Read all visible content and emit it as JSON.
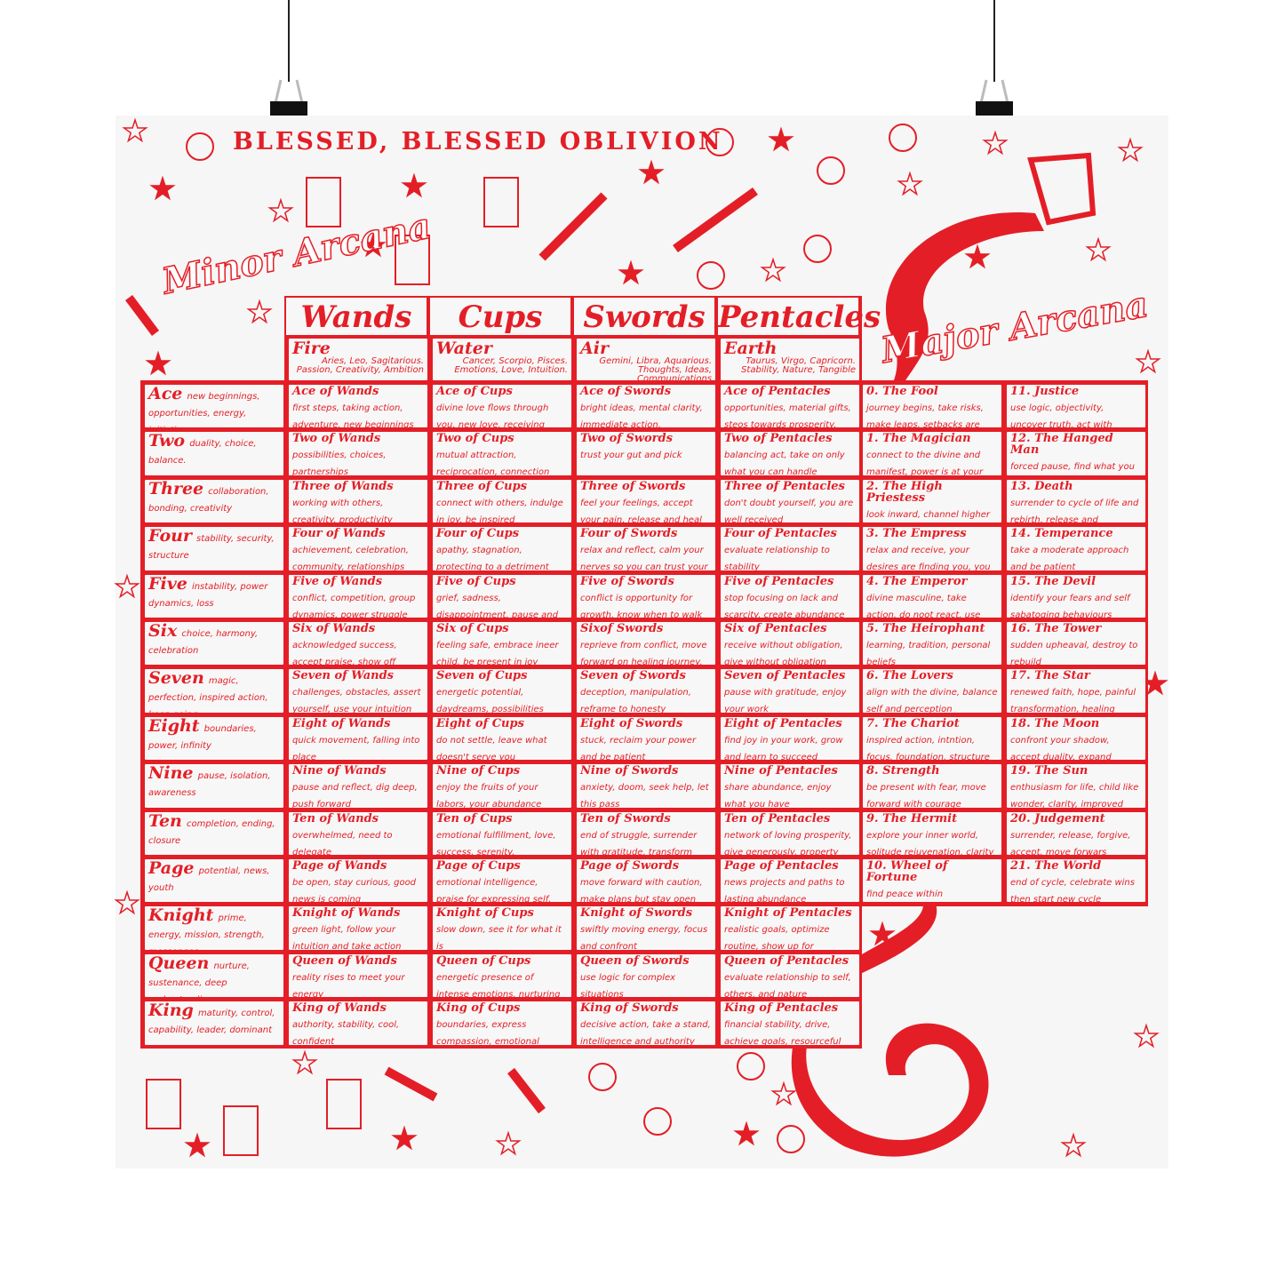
{
  "poster": {
    "title": "BLESSED, BLESSED OBLIVION",
    "minor_label": "Minor Arcana",
    "major_label": "Major Arcana",
    "accent_color": "#e41e26",
    "background_color": "#f6f6f6",
    "decor_icons": [
      "star-icon",
      "candle-icon",
      "dagger-icon",
      "coin-icon",
      "snake-icon",
      "binder-clip-icon"
    ]
  },
  "suits": [
    {
      "name": "Wands",
      "element": "Fire",
      "element_desc": "Aries, Leo, Sagitarious. Passion, Creativity, Ambition"
    },
    {
      "name": "Cups",
      "element": "Water",
      "element_desc": "Cancer, Scorpio, Pisces. Emotions, Love, Intuition."
    },
    {
      "name": "Swords",
      "element": "Air",
      "element_desc": "Gemini, Libra, Aquarious. Thoughts, Ideas, Communications"
    },
    {
      "name": "Pentacles",
      "element": "Earth",
      "element_desc": "Taurus, Virgo, Capricorn. Stability, Nature, Tangible"
    }
  ],
  "ranks": [
    {
      "name": "Ace",
      "meaning": "new beginnings, opportunities, energy, initiation."
    },
    {
      "name": "Two",
      "meaning": "duality, choice, balance."
    },
    {
      "name": "Three",
      "meaning": "collaboration, bonding, creativity"
    },
    {
      "name": "Four",
      "meaning": "stability, security, structure"
    },
    {
      "name": "Five",
      "meaning": "instability, power dynamics, loss"
    },
    {
      "name": "Six",
      "meaning": "choice, harmony, celebration"
    },
    {
      "name": "Seven",
      "meaning": "magic, perfection, inspired action, keep going"
    },
    {
      "name": "Eight",
      "meaning": "boundaries, power, infinity"
    },
    {
      "name": "Nine",
      "meaning": "pause, isolation, awareness"
    },
    {
      "name": "Ten",
      "meaning": "completion, ending, closure"
    },
    {
      "name": "Page",
      "meaning": "potential, news, youth"
    },
    {
      "name": "Knight",
      "meaning": "prime, energy, mission, strength, messenger"
    },
    {
      "name": "Queen",
      "meaning": "nurture, sustenance, deep understanding"
    },
    {
      "name": "King",
      "meaning": "maturity, control, capability, leader, dominant"
    }
  ],
  "cards": [
    [
      {
        "title": "Ace of Wands",
        "meaning": "first steps, taking action, adventure, new beginnings"
      },
      {
        "title": "Ace of Cups",
        "meaning": "divine love flows through you, new love, receiving love, self love"
      },
      {
        "title": "Ace of Swords",
        "meaning": "bright ideas, mental clarity, immediate action, confrontation"
      },
      {
        "title": "Ace of Pentacles",
        "meaning": "opportunities, material gifts, steos towards prosperity, abundance"
      }
    ],
    [
      {
        "title": "Two of Wands",
        "meaning": "possibilities, choices, partnerships"
      },
      {
        "title": "Two of Cups",
        "meaning": "mutual attraction, reciprocation, connection"
      },
      {
        "title": "Two of Swords",
        "meaning": "trust your gut and pick"
      },
      {
        "title": "Two of Pentacles",
        "meaning": "balancing act, take on only what you can handle"
      }
    ],
    [
      {
        "title": "Three of Wands",
        "meaning": "working with others, creativity, productivity"
      },
      {
        "title": "Three of Cups",
        "meaning": "connect with others, indulge in joy, be inspired"
      },
      {
        "title": "Three of Swords",
        "meaning": "feel your feelings, accept your pain, release and heal"
      },
      {
        "title": "Three of Pentacles",
        "meaning": "don't doubt yourself, you are well received"
      }
    ],
    [
      {
        "title": "Four of Wands",
        "meaning": "achievement, celebration, community, relationships"
      },
      {
        "title": "Four of Cups",
        "meaning": "apathy, stagnation, protecting to a detriment"
      },
      {
        "title": "Four of Swords",
        "meaning": "relax and reflect, calm your nerves so you can trust your intuition"
      },
      {
        "title": "Four of Pentacles",
        "meaning": "evaluate relationship to stability"
      }
    ],
    [
      {
        "title": "Five of Wands",
        "meaning": "conflict, competition, group dynamics, power struggle"
      },
      {
        "title": "Five of Cups",
        "meaning": "grief, sadness, disappointment, pause and process"
      },
      {
        "title": "Five of Swords",
        "meaning": "conflict is opportunity for growth, know when to walk away"
      },
      {
        "title": "Five of Pentacles",
        "meaning": "stop focusing on lack and scarcity, create abundance within"
      }
    ],
    [
      {
        "title": "Six of Wands",
        "meaning": "acknowledged success, accept praise, show off"
      },
      {
        "title": "Six of Cups",
        "meaning": "feeling safe, embrace ineer child, be present in joy"
      },
      {
        "title": "Sixof Swords",
        "meaning": "reprieve from conflict, move forward on healing journey, travel"
      },
      {
        "title": "Six of Pentacles",
        "meaning": "receive without obligation, give without obligation"
      }
    ],
    [
      {
        "title": "Seven of Wands",
        "meaning": "challenges, obstacles, assert yourself, use your intuition"
      },
      {
        "title": "Seven of Cups",
        "meaning": "energetic potential, daydreams, possibilities"
      },
      {
        "title": "Seven of Swords",
        "meaning": "deception, manipulation, reframe to honesty"
      },
      {
        "title": "Seven of Pentacles",
        "meaning": "pause with gratitude, enjoy your work"
      }
    ],
    [
      {
        "title": "Eight of Wands",
        "meaning": "quick movement, falling into place"
      },
      {
        "title": "Eight of Cups",
        "meaning": "do not settle, leave what doesn't serve you"
      },
      {
        "title": "Eight of Swords",
        "meaning": "stuck, reclaim your power and be patient"
      },
      {
        "title": "Eight of Pentacles",
        "meaning": "find joy in your work, grow and learn to succeed"
      }
    ],
    [
      {
        "title": "Nine of Wands",
        "meaning": "pause and reflect, dig deep, push forward"
      },
      {
        "title": "Nine of Cups",
        "meaning": "enjoy the fruits of your labors, your abundance overflows"
      },
      {
        "title": "Nine of Swords",
        "meaning": "anxiety, doom, seek help, let this pass"
      },
      {
        "title": "Nine of Pentacles",
        "meaning": "share abundance, enjoy what you have"
      }
    ],
    [
      {
        "title": "Ten of Wands",
        "meaning": "overwhelmed, need to delegate"
      },
      {
        "title": "Ten of Cups",
        "meaning": "emotional fulfillment, love, success, serenity, satisfaction"
      },
      {
        "title": "Ten of Swords",
        "meaning": "end of struggle, surrender with gratitude, transform"
      },
      {
        "title": "Ten of Pentacles",
        "meaning": "network of loving prosperity, give generously, property"
      }
    ],
    [
      {
        "title": "Page of Wands",
        "meaning": "be open, stay curious, good news is coming"
      },
      {
        "title": "Page of Cups",
        "meaning": "emotional intelligence, praise for expressing self, receive messages"
      },
      {
        "title": "Page of Swords",
        "meaning": "move forward with caution, make plans but stay open"
      },
      {
        "title": "Page of Pentacles",
        "meaning": "news projects and paths to lasting abundance"
      }
    ],
    [
      {
        "title": "Knight of Wands",
        "meaning": "green light, follow your intuition and take action"
      },
      {
        "title": "Knight of Cups",
        "meaning": "slow down, see it for what it is"
      },
      {
        "title": "Knight of Swords",
        "meaning": "swiftly moving energy, focus and confront"
      },
      {
        "title": "Knight of Pentacles",
        "meaning": "realistic goals, optimize routine, show up for mundane"
      }
    ],
    [
      {
        "title": "Queen of Wands",
        "meaning": "reality rises to meet your energy"
      },
      {
        "title": "Queen of Cups",
        "meaning": "energetic presence of intense emotions, nurturing"
      },
      {
        "title": "Queen of Swords",
        "meaning": "use logic for complex situations"
      },
      {
        "title": "Queen of Pentacles",
        "meaning": "evaluate relationship to self, others, and nature"
      }
    ],
    [
      {
        "title": "King of Wands",
        "meaning": "authority, stability, cool, confident"
      },
      {
        "title": "King of Cups",
        "meaning": "boundaries, express compassion, emotional intelligence"
      },
      {
        "title": "King of Swords",
        "meaning": "decisive action, take a stand, intelligence and authority"
      },
      {
        "title": "King of Pentacles",
        "meaning": "financial stability, drive, achieve goals, resourceful"
      }
    ]
  ],
  "major": [
    {
      "title": "0. The Fool",
      "meaning": "journey begins, take risks, make leaps, setbacks are lessons"
    },
    {
      "title": "1. The Magician",
      "meaning": "connect to the divine and manifest, power is at your fingertips"
    },
    {
      "title": "2. The High Priestess",
      "meaning": "look inward, channel higher self"
    },
    {
      "title": "3. The Empress",
      "meaning": "relax and receive, your desires are finding you, you attract"
    },
    {
      "title": "4. The Emperor",
      "meaning": "divine masculine, take action, do noot react, use ambition for good"
    },
    {
      "title": "5. The Heirophant",
      "meaning": "learning, tradition, personal beliefs"
    },
    {
      "title": "6. The Lovers",
      "meaning": "align with the divine, balance self and perception"
    },
    {
      "title": "7. The Chariot",
      "meaning": "inspired action, intntion, focus, foundation, structure"
    },
    {
      "title": "8. Strength",
      "meaning": "be present with fear, move forward with courage"
    },
    {
      "title": "9. The Hermit",
      "meaning": "explore your inner world, solitude rejuvenation, clarity"
    },
    {
      "title": "10. Wheel of Fortune",
      "meaning": "find peace within uncertainty, change"
    },
    {
      "title": "11. Justice",
      "meaning": "use logic, objectivity, uncover truth, act with integrity"
    },
    {
      "title": "12. The Hanged Man",
      "meaning": "forced pause, find what you are to learn then move on"
    },
    {
      "title": "13. Death",
      "meaning": "surrender to cycle of life and rebirth, release and replenish"
    },
    {
      "title": "14. Temperance",
      "meaning": "take a moderate approach and be patient"
    },
    {
      "title": "15. The Devil",
      "meaning": "identify your fears and self sabatoging behaviours"
    },
    {
      "title": "16. The Tower",
      "meaning": "sudden upheaval, destroy to rebuild"
    },
    {
      "title": "17. The Star",
      "meaning": "renewed faith, hope, painful transformation, healing energy"
    },
    {
      "title": "18. The Moon",
      "meaning": "confront your shadow, accept duality, expand concisiousness"
    },
    {
      "title": "19. The Sun",
      "meaning": "enthusiasm for life, child like wonder, clarity, improved health"
    },
    {
      "title": "20. Judgement",
      "meaning": "surrender, release, forgive, accept, move forwars"
    },
    {
      "title": "21. The World",
      "meaning": "end of cycle, celebrate wins then start new cycle"
    }
  ]
}
